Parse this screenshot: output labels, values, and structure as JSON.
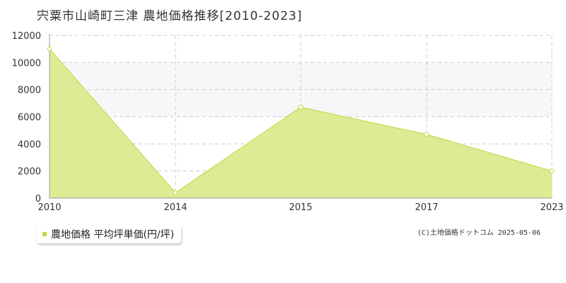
{
  "title": "宍粟市山崎町三津 農地価格推移[2010-2023]",
  "credit": "(C)土地価格ドットコム 2025-05-06",
  "colors": {
    "fill": "#dcec94",
    "line": "#b5dc3c",
    "marker_fill": "#ffffff",
    "grid": "#cccccc",
    "band": "#f7f7f9"
  },
  "chart_data": {
    "type": "area",
    "categories": [
      "2010",
      "2014",
      "2015",
      "2017",
      "2023"
    ],
    "series": [
      {
        "name": "農地価格 平均坪単価(円/坪)",
        "values": [
          11000,
          400,
          6700,
          4700,
          2000
        ]
      }
    ],
    "yticks": [
      0,
      2000,
      4000,
      6000,
      8000,
      10000,
      12000
    ],
    "ylim": [
      0,
      12000
    ],
    "grid": true,
    "legend": {
      "position": "bottom-left",
      "label": "農地価格 平均坪単価(円/坪)"
    }
  }
}
